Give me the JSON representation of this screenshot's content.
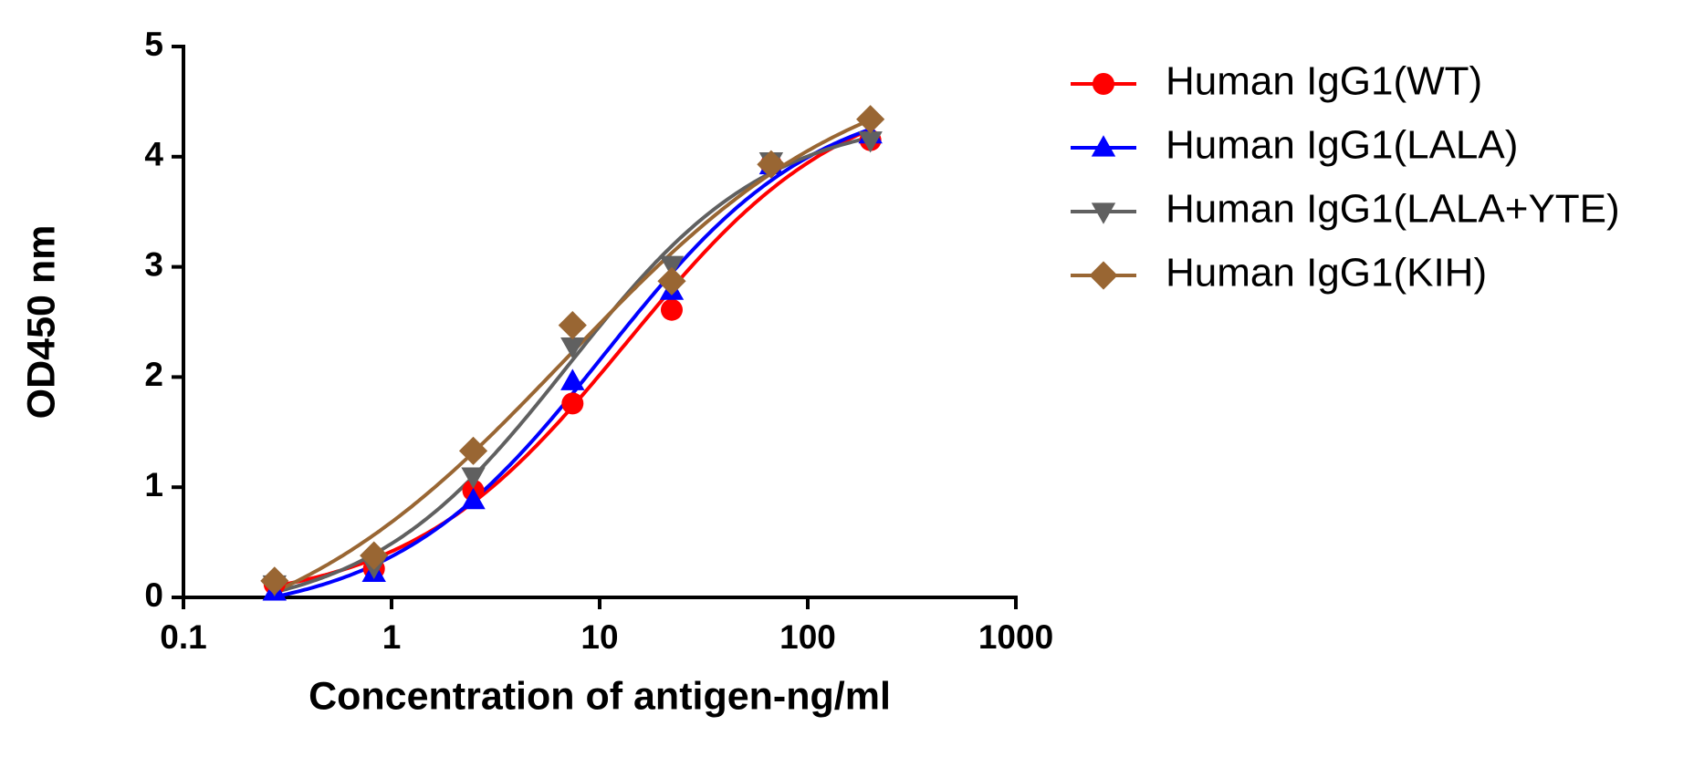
{
  "chart_data": {
    "type": "scatter",
    "x_label": "Concentration of antigen-ng/ml",
    "y_label": "OD450 nm",
    "x": [
      0.274,
      0.823,
      2.47,
      7.41,
      22.2,
      66.7,
      200
    ],
    "xscale": "log",
    "xlim": [
      0.1,
      1000
    ],
    "xticks": [
      0.1,
      1,
      10,
      100,
      1000
    ],
    "ylim": [
      0,
      5
    ],
    "yticks": [
      0,
      1,
      2,
      3,
      4,
      5
    ],
    "series": [
      {
        "name": "Human IgG1(WT)",
        "color": "#ff0000",
        "marker": "circle",
        "values": [
          0.12,
          0.26,
          0.97,
          1.76,
          2.61,
          3.93,
          4.15
        ]
      },
      {
        "name": "Human IgG1(LALA)",
        "color": "#0000ff",
        "marker": "triangle-up",
        "values": [
          0.05,
          0.22,
          0.88,
          1.96,
          2.78,
          3.92,
          4.2
        ]
      },
      {
        "name": "Human IgG1(LALA+YTE)",
        "color": "#606060",
        "marker": "triangle-down",
        "values": [
          0.12,
          0.28,
          1.1,
          2.28,
          3.02,
          3.96,
          4.15
        ]
      },
      {
        "name": "Human IgG1(KIH)",
        "color": "#996633",
        "marker": "diamond",
        "values": [
          0.15,
          0.38,
          1.33,
          2.47,
          2.87,
          3.93,
          4.34
        ]
      }
    ],
    "legend": "right"
  }
}
